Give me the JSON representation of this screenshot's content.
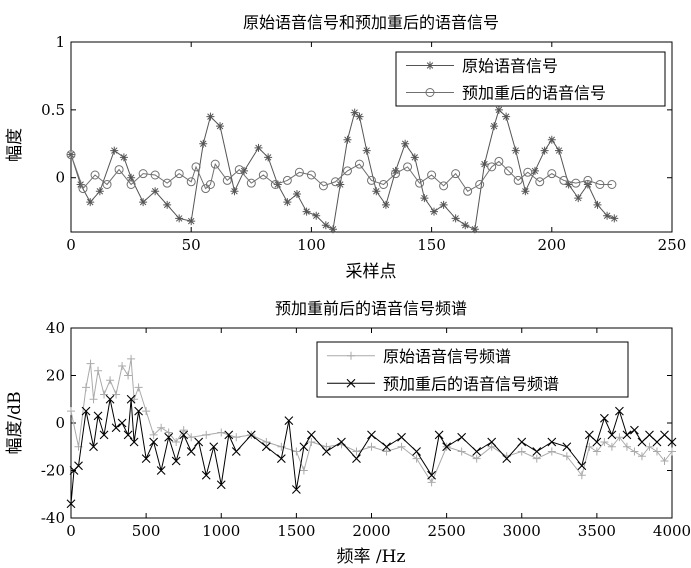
{
  "chart_data": [
    {
      "type": "line",
      "title": "原始语音信号和预加重后的语音信号",
      "xlabel": "采样点",
      "ylabel": "幅度",
      "xlim": [
        0,
        250
      ],
      "ylim": [
        -0.4,
        1
      ],
      "x_ticks": [
        "0",
        "50",
        "100",
        "150",
        "200",
        "250"
      ],
      "y_ticks": [
        "1",
        "0.5",
        "0"
      ],
      "grid": false,
      "legend_position": "top-right",
      "series": [
        {
          "name": "原始语音信号",
          "marker": "star",
          "color": "#555555",
          "x": [
            0,
            4,
            8,
            12,
            18,
            22,
            25,
            30,
            35,
            40,
            45,
            50,
            55,
            58,
            62,
            68,
            72,
            78,
            82,
            86,
            90,
            94,
            98,
            102,
            106,
            109,
            112,
            115,
            118,
            120,
            123,
            127,
            131,
            135,
            139,
            143,
            147,
            151,
            155,
            160,
            164,
            168,
            172,
            176,
            178,
            181,
            185,
            189,
            193,
            197,
            200,
            203,
            207,
            211,
            215,
            219,
            223,
            226
          ],
          "y": [
            0.17,
            -0.05,
            -0.18,
            -0.1,
            0.2,
            0.15,
            0,
            -0.18,
            -0.1,
            -0.2,
            -0.3,
            -0.32,
            0.25,
            0.45,
            0.38,
            -0.1,
            0.05,
            0.22,
            0.15,
            -0.05,
            -0.18,
            -0.12,
            -0.25,
            -0.28,
            -0.35,
            -0.38,
            -0.05,
            0.28,
            0.48,
            0.45,
            0.2,
            -0.1,
            -0.2,
            0.05,
            0.25,
            0.15,
            -0.15,
            -0.25,
            -0.2,
            -0.3,
            -0.35,
            -0.38,
            0.1,
            0.38,
            0.5,
            0.45,
            0.2,
            -0.1,
            0.05,
            0.2,
            0.28,
            0.2,
            -0.05,
            -0.15,
            -0.05,
            -0.2,
            -0.28,
            -0.3
          ]
        },
        {
          "name": "预加重后的语音信号",
          "marker": "circle",
          "color": "#707070",
          "x": [
            0,
            5,
            10,
            15,
            20,
            25,
            30,
            35,
            40,
            45,
            50,
            52,
            56,
            58,
            60,
            65,
            70,
            75,
            80,
            85,
            90,
            95,
            100,
            105,
            110,
            115,
            120,
            125,
            130,
            135,
            140,
            145,
            150,
            155,
            160,
            165,
            170,
            175,
            178,
            182,
            186,
            190,
            195,
            200,
            205,
            210,
            215,
            220,
            225
          ],
          "y": [
            0.17,
            -0.08,
            0.02,
            -0.05,
            0.06,
            -0.05,
            0.03,
            0.02,
            -0.04,
            0.03,
            -0.03,
            0.08,
            -0.08,
            -0.05,
            0.1,
            -0.02,
            0.06,
            -0.04,
            0.02,
            -0.05,
            -0.02,
            0.04,
            0.02,
            -0.06,
            -0.03,
            0.05,
            0.1,
            -0.02,
            -0.05,
            0.03,
            0.08,
            -0.04,
            0.02,
            -0.06,
            0.03,
            -0.1,
            -0.05,
            0.08,
            0.12,
            0.05,
            -0.02,
            0.04,
            -0.03,
            0.03,
            -0.02,
            -0.04,
            -0.02,
            -0.05,
            -0.05
          ]
        }
      ]
    },
    {
      "type": "line",
      "title": "预加重前后的语音信号频谱",
      "xlabel": "频率 /Hz",
      "ylabel": "幅度/dB",
      "xlim": [
        0,
        4000
      ],
      "ylim": [
        -40,
        40
      ],
      "x_ticks": [
        "0",
        "500",
        "1000",
        "1500",
        "2000",
        "2500",
        "3000",
        "3500",
        "4000"
      ],
      "y_ticks": [
        "40",
        "20",
        "0",
        "-20",
        "-40"
      ],
      "grid": false,
      "legend_position": "top-right",
      "series": [
        {
          "name": "原始语音信号频谱",
          "marker": "plus",
          "color": "#aaaaaa",
          "x": [
            0,
            50,
            100,
            130,
            150,
            180,
            220,
            260,
            300,
            340,
            380,
            400,
            420,
            450,
            500,
            550,
            600,
            650,
            700,
            750,
            800,
            900,
            1000,
            1100,
            1200,
            1300,
            1400,
            1500,
            1550,
            1600,
            1700,
            1800,
            1900,
            2000,
            2100,
            2200,
            2300,
            2400,
            2500,
            2600,
            2700,
            2800,
            2900,
            3000,
            3100,
            3200,
            3300,
            3400,
            3450,
            3500,
            3550,
            3600,
            3650,
            3700,
            3750,
            3800,
            3850,
            3900,
            3950,
            4000
          ],
          "y": [
            5,
            -10,
            15,
            25,
            10,
            22,
            12,
            18,
            12,
            24,
            20,
            27,
            10,
            15,
            5,
            -5,
            -2,
            -4,
            -8,
            -3,
            -6,
            -5,
            -4,
            -6,
            -5,
            -8,
            -10,
            -12,
            -20,
            -8,
            -10,
            -9,
            -12,
            -10,
            -12,
            -10,
            -15,
            -25,
            -10,
            -12,
            -15,
            -10,
            -14,
            -12,
            -15,
            -12,
            -14,
            -22,
            -10,
            -12,
            -8,
            -10,
            -6,
            -10,
            -12,
            -14,
            -10,
            -12,
            -16,
            -12
          ]
        },
        {
          "name": "预加重后的语音信号频谱",
          "marker": "x",
          "color": "#000000",
          "x": [
            0,
            20,
            50,
            100,
            150,
            180,
            220,
            260,
            300,
            340,
            380,
            400,
            420,
            450,
            500,
            550,
            600,
            650,
            700,
            750,
            800,
            850,
            900,
            950,
            1000,
            1050,
            1100,
            1200,
            1300,
            1400,
            1450,
            1500,
            1550,
            1600,
            1700,
            1800,
            1900,
            2000,
            2100,
            2200,
            2300,
            2400,
            2450,
            2500,
            2600,
            2700,
            2800,
            2900,
            3000,
            3100,
            3200,
            3300,
            3400,
            3450,
            3500,
            3550,
            3600,
            3650,
            3700,
            3750,
            3800,
            3850,
            3900,
            3950,
            4000
          ],
          "y": [
            -34,
            -20,
            -18,
            5,
            -10,
            3,
            -5,
            10,
            -2,
            0,
            -5,
            10,
            -8,
            5,
            -15,
            -8,
            -20,
            -6,
            -16,
            -5,
            -12,
            -8,
            -22,
            -10,
            -26,
            -5,
            -12,
            -5,
            -10,
            -15,
            1,
            -28,
            -10,
            -5,
            -12,
            -8,
            -15,
            -5,
            -10,
            -6,
            -12,
            -22,
            -5,
            -10,
            -6,
            -12,
            -8,
            -15,
            -8,
            -12,
            -8,
            -10,
            -18,
            -5,
            -8,
            2,
            -5,
            5,
            -5,
            -3,
            -8,
            -5,
            -8,
            -5,
            -8
          ]
        }
      ]
    }
  ]
}
